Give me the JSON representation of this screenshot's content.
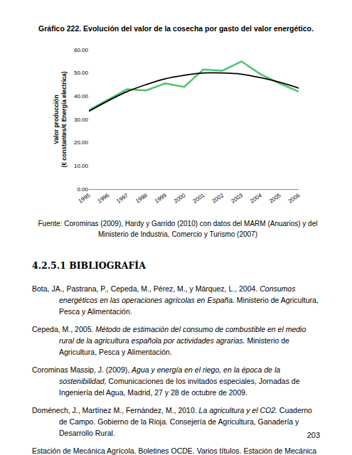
{
  "caption": "Gráfico 222. Evolución del valor de la cosecha por gasto del valor energético.",
  "chart_data": {
    "type": "line",
    "ylabel": "Valor producción\n(€ constantes/€ Energía electrica)",
    "categories": [
      "1995",
      "1996",
      "1997",
      "1998",
      "1999",
      "2000",
      "2001",
      "2002",
      "2003",
      "2004",
      "2005",
      "2006"
    ],
    "series": [
      {
        "color": "#4cc46a",
        "values": [
          34,
          38.5,
          43,
          42.5,
          45.5,
          44,
          51.5,
          51,
          55,
          49.5,
          45.5,
          42
        ]
      },
      {
        "color": "#000000",
        "values": [
          33.5,
          38,
          42,
          45,
          47.5,
          49,
          50,
          50,
          49.5,
          48,
          46,
          43.5
        ]
      }
    ],
    "ylim": [
      0,
      60
    ],
    "yticks": [
      {
        "value": 0,
        "label": "0.00"
      },
      {
        "value": 10,
        "label": "10.00"
      },
      {
        "value": 20,
        "label": "20.00"
      },
      {
        "value": 30,
        "label": "30.00"
      },
      {
        "value": 40,
        "label": "40.00"
      },
      {
        "value": 50,
        "label": "50.00"
      },
      {
        "value": 60,
        "label": "60.00"
      }
    ],
    "grid": false
  },
  "source": "Fuente: Corominas (2009), Hardy y Garrido (2010) con datos del MARM (Anuarios) y del Ministerio de Industria, Comercio y Turismo (2007)",
  "section_heading": "4.2.5.1 BIBLIOGRAFÍA",
  "bibliography": [
    {
      "authors": "Bota, JA., Pastrana, P., Cepeda, M., Pérez, M., y Márquez, L., 2004.",
      "title": "Consumos energéticos en las operaciones agrícolas en España.",
      "rest": "Ministerio de Agricultura, Pesca y Alimentación."
    },
    {
      "authors": "Cepeda, M., 2005.",
      "title": "Método de estimación del consumo de combustible en el medio rural de la agricultura española por actividades agrarias.",
      "rest": "Ministerio de Agricultura, Pesca y Alimentación."
    },
    {
      "authors": "Corominas Massip, J. (2009),",
      "title": "Agua y energía en el riego, en la época de la sostenibilidad,",
      "rest": "Comunicaciones de los invitados especiales, Jornadas de Ingeniería del Agua, Madrid, 27 y 28 de octubre de 2009."
    },
    {
      "authors": "Doménech, J., Martínez M., Fernández, M., 2010.",
      "title": "La agricultura y el CO2.",
      "rest": "Cuaderno de Campo. Gobierno de la Rioja. Consejería de Agricultura, Ganadería y Desarrollo Rural."
    },
    {
      "authors": "Estación de Mecánica Agrícola. Boletines OCDE. Varios títulos. Estación de Mecánica Agrícola."
    }
  ],
  "page_number": 203
}
